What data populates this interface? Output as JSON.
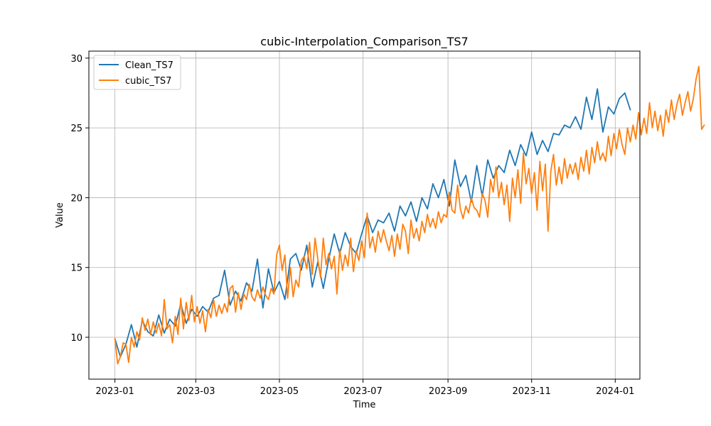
{
  "chart_data": {
    "type": "line",
    "title": "cubic-Interpolation_Comparison_TS7",
    "xlabel": "Time",
    "ylabel": "Value",
    "x_range": [
      "2022-12-13",
      "2024-01-19"
    ],
    "x_ticks": [
      "2023-01-01",
      "2023-03-01",
      "2023-05-01",
      "2023-07-01",
      "2023-09-01",
      "2023-11-01",
      "2024-01-01"
    ],
    "x_tick_labels": [
      "2023-01",
      "2023-03",
      "2023-05",
      "2023-07",
      "2023-09",
      "2023-11",
      "2024-01"
    ],
    "ylim": [
      7,
      30.5
    ],
    "y_ticks": [
      10,
      15,
      20,
      25,
      30
    ],
    "grid": true,
    "legend_position": "top-left",
    "colors": {
      "Clean_TS7": "#1f77b4",
      "cubic_TS7": "#ff7f0e"
    },
    "series": [
      {
        "name": "Clean_TS7",
        "x_start": "2023-01-01",
        "step_days": 4,
        "values": [
          9.9,
          8.6,
          9.5,
          10.9,
          9.3,
          11.2,
          10.4,
          10.1,
          11.6,
          10.3,
          11.3,
          10.8,
          12.4,
          11.0,
          12.0,
          11.5,
          12.2,
          11.8,
          12.8,
          13.0,
          14.8,
          12.3,
          13.3,
          12.6,
          13.9,
          13.3,
          15.6,
          12.1,
          14.9,
          13.2,
          14.0,
          12.7,
          15.6,
          16.0,
          14.8,
          16.6,
          13.6,
          15.4,
          13.5,
          15.6,
          17.4,
          16.0,
          17.5,
          16.5,
          16.0,
          17.4,
          18.7,
          17.5,
          18.4,
          18.2,
          18.9,
          17.6,
          19.4,
          18.7,
          19.7,
          18.3,
          20.0,
          19.2,
          21.0,
          20.0,
          21.3,
          19.4,
          22.7,
          20.8,
          21.6,
          19.7,
          22.3,
          20.1,
          22.7,
          21.4,
          22.3,
          21.8,
          23.4,
          22.3,
          23.8,
          23.0,
          24.7,
          23.1,
          24.1,
          23.3,
          24.6,
          24.5,
          25.2,
          25.0,
          25.8,
          24.9,
          27.2,
          25.6,
          27.8,
          24.7,
          26.5,
          26.0,
          27.1,
          27.5,
          26.3
        ]
      },
      {
        "name": "cubic_TS7",
        "x_start": "2023-01-01",
        "step_days": 2,
        "values": [
          9.9,
          8.1,
          8.6,
          9.6,
          9.5,
          8.2,
          10.0,
          9.3,
          10.4,
          9.8,
          11.4,
          10.5,
          11.3,
          10.2,
          11.1,
          10.3,
          11.0,
          10.1,
          12.7,
          10.6,
          10.9,
          9.6,
          11.5,
          10.2,
          12.8,
          10.6,
          12.5,
          11.2,
          13.0,
          11.1,
          12.2,
          11.0,
          11.9,
          10.4,
          12.0,
          11.4,
          12.7,
          11.5,
          12.3,
          11.7,
          12.4,
          11.8,
          13.5,
          13.7,
          11.8,
          13.2,
          12.0,
          13.1,
          12.7,
          13.8,
          12.9,
          12.6,
          13.4,
          12.8,
          13.6,
          13.0,
          12.7,
          13.5,
          13.1,
          15.9,
          16.6,
          14.8,
          15.9,
          12.8,
          15.0,
          12.9,
          14.1,
          13.6,
          15.5,
          15.8,
          14.9,
          16.8,
          14.5,
          17.1,
          15.6,
          14.3,
          17.1,
          15.2,
          16.0,
          14.9,
          15.8,
          13.1,
          16.3,
          14.8,
          15.9,
          15.1,
          17.1,
          14.7,
          16.2,
          15.5,
          16.9,
          15.7,
          18.9,
          16.4,
          17.2,
          16.1,
          17.6,
          16.8,
          17.7,
          16.9,
          16.2,
          17.3,
          15.8,
          17.4,
          16.3,
          18.1,
          17.6,
          16.0,
          18.4,
          17.1,
          17.8,
          16.9,
          18.3,
          17.5,
          18.8,
          17.9,
          18.5,
          17.8,
          19.0,
          18.2,
          18.8,
          18.6,
          20.4,
          19.1,
          18.9,
          20.9,
          19.2,
          18.5,
          19.4,
          18.9,
          20.0,
          19.3,
          19.1,
          18.6,
          20.3,
          19.8,
          18.6,
          21.3,
          20.4,
          22.2,
          20.0,
          21.1,
          19.5,
          20.9,
          18.3,
          21.4,
          20.0,
          22.0,
          19.6,
          23.2,
          21.0,
          22.1,
          20.3,
          21.8,
          19.1,
          22.6,
          20.5,
          22.4,
          17.6,
          21.9,
          23.1,
          20.9,
          22.2,
          21.0,
          22.8,
          21.4,
          22.4,
          21.7,
          22.5,
          21.3,
          22.9,
          21.9,
          23.4,
          21.7,
          23.6,
          22.5,
          24.0,
          22.7,
          23.2,
          22.6,
          24.4,
          23.0,
          24.6,
          23.5,
          24.9,
          23.8,
          23.1,
          25.0,
          24.0,
          25.2,
          24.2,
          26.1,
          24.5,
          25.7,
          24.6,
          26.8,
          25.0,
          26.2,
          24.8,
          25.9,
          24.4,
          26.3,
          25.4,
          27.0,
          25.6,
          26.7,
          27.4,
          25.9,
          26.8,
          27.6,
          26.2,
          27.1,
          28.5,
          29.4,
          24.9,
          25.2
        ]
      }
    ]
  }
}
